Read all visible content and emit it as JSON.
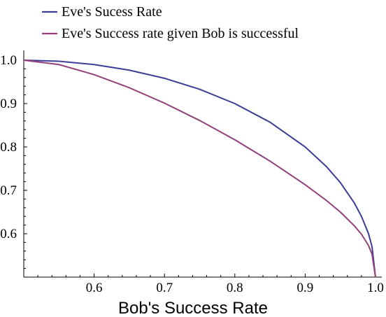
{
  "chart_data": {
    "type": "line",
    "title": "",
    "xlabel": "Bob's Success Rate",
    "ylabel": "",
    "xlim": [
      0.5,
      1.0
    ],
    "ylim": [
      0.5,
      1.0
    ],
    "x_ticks": [
      "0.6",
      "0.7",
      "0.8",
      "0.9",
      "1.0"
    ],
    "y_ticks": [
      "1.0",
      "0.9",
      "0.8",
      "0.7",
      "0.6"
    ],
    "grid": false,
    "legend_position": "top-left",
    "series": [
      {
        "name": "Eve's Sucess Rate",
        "color": "#3d3d98",
        "x": [
          0.5,
          0.55,
          0.6,
          0.65,
          0.7,
          0.75,
          0.8,
          0.85,
          0.9,
          0.93,
          0.95,
          0.97,
          0.98,
          0.99,
          0.995,
          1.0
        ],
        "y": [
          1.0,
          0.9975,
          0.9899,
          0.977,
          0.9583,
          0.933,
          0.9,
          0.8571,
          0.8,
          0.7551,
          0.7179,
          0.6706,
          0.64,
          0.6005,
          0.5705,
          0.5
        ]
      },
      {
        "name": "Eve's Success rate given Bob is successful",
        "color": "#93407a",
        "x": [
          0.5,
          0.55,
          0.6,
          0.65,
          0.7,
          0.75,
          0.8,
          0.85,
          0.9,
          0.93,
          0.95,
          0.97,
          0.98,
          0.99,
          0.995,
          1.0
        ],
        "y": [
          1.0,
          0.9899,
          0.9667,
          0.9365,
          0.901,
          0.861,
          0.8165,
          0.7674,
          0.713,
          0.677,
          0.65,
          0.618,
          0.599,
          0.573,
          0.553,
          0.5
        ]
      }
    ]
  }
}
